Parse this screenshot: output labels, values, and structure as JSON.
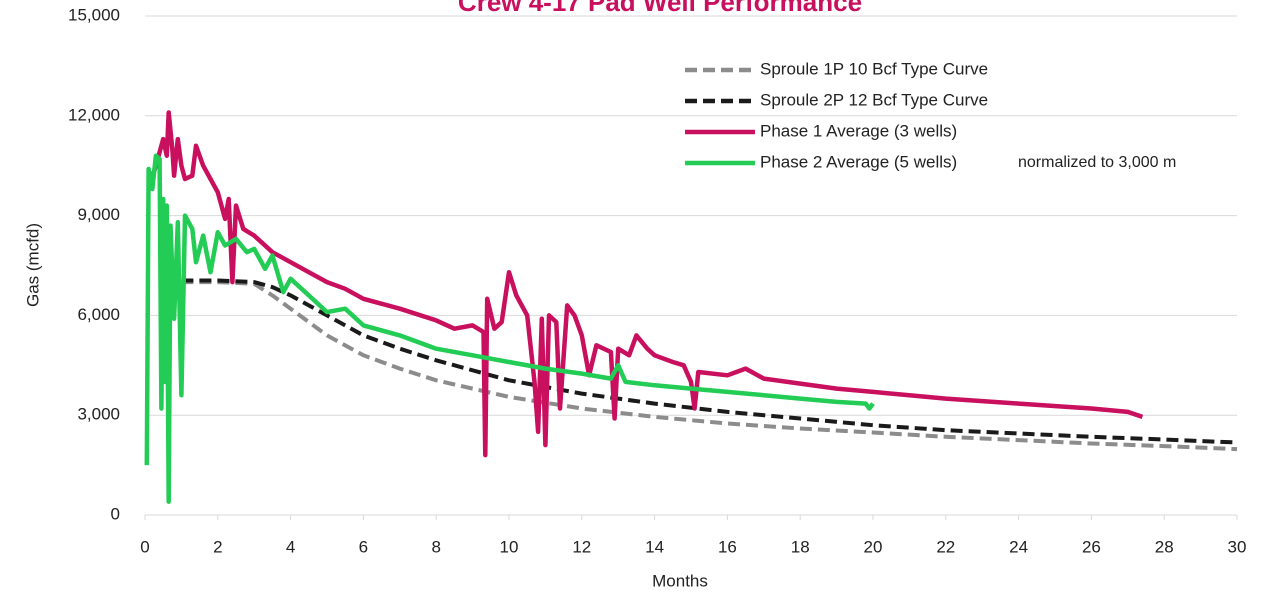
{
  "chart_data": {
    "type": "line",
    "title": "Crew 4-17 Pad Well Performance",
    "x_label": "Months",
    "y_label": "Gas (mcfd)",
    "annotation": "normalized to 3,000 m",
    "xlim": [
      0,
      30
    ],
    "xticks": [
      0,
      2,
      4,
      6,
      8,
      10,
      12,
      14,
      16,
      18,
      20,
      22,
      24,
      26,
      28,
      30
    ],
    "ylim": [
      0,
      15000
    ],
    "yticks": [
      0,
      {
        "value": 3000,
        "label": "3,000"
      },
      {
        "value": 6000,
        "label": "6,000"
      },
      {
        "value": 9000,
        "label": "9,000"
      },
      {
        "value": 12000,
        "label": "12,000"
      },
      {
        "value": 15000,
        "label": "15,000"
      }
    ],
    "grid": true,
    "legend": "upper right",
    "series": [
      {
        "name": "Sproule 1P 10 Bcf Type Curve",
        "color": "#8c8c8c",
        "dashed": true,
        "x": [
          1,
          2,
          3,
          3.5,
          4,
          5,
          6,
          7,
          8,
          10,
          12,
          14,
          16,
          18,
          20,
          22,
          24,
          26,
          28,
          30
        ],
        "values": [
          7000,
          7000,
          6950,
          6600,
          6200,
          5400,
          4800,
          4400,
          4050,
          3550,
          3200,
          2950,
          2750,
          2600,
          2480,
          2350,
          2250,
          2150,
          2070,
          1980
        ]
      },
      {
        "name": "Sproule 2P 12 Bcf Type Curve",
        "color": "#1a1a1a",
        "dashed": true,
        "x": [
          1,
          2,
          3,
          3.5,
          4,
          5,
          6,
          7,
          8,
          10,
          12,
          14,
          16,
          18,
          20,
          22,
          24,
          26,
          28,
          30
        ],
        "values": [
          7050,
          7050,
          7000,
          6850,
          6600,
          6000,
          5400,
          5000,
          4650,
          4050,
          3650,
          3350,
          3100,
          2900,
          2700,
          2550,
          2450,
          2350,
          2270,
          2180
        ]
      },
      {
        "name": "Phase 1 Average (3 wells)",
        "color": "#c8105e",
        "dashed": false,
        "x": [
          0.1,
          0.3,
          0.5,
          0.6,
          0.65,
          0.75,
          0.8,
          0.9,
          1.0,
          1.1,
          1.3,
          1.4,
          1.6,
          1.8,
          2,
          2.2,
          2.3,
          2.4,
          2.5,
          2.7,
          3,
          3.5,
          4,
          4.5,
          5,
          5.5,
          6,
          7,
          8,
          8.5,
          9,
          9.3,
          9.35,
          9.4,
          9.6,
          9.8,
          10,
          10.2,
          10.5,
          10.7,
          10.8,
          10.9,
          11,
          11.1,
          11.3,
          11.4,
          11.6,
          11.8,
          12,
          12.2,
          12.4,
          12.8,
          12.9,
          13,
          13.3,
          13.5,
          13.8,
          14,
          14.5,
          14.8,
          15,
          15.1,
          15.2,
          16,
          16.5,
          17,
          18,
          19,
          20,
          22,
          24,
          26,
          27,
          27.4
        ],
        "values": [
          9800,
          10500,
          11300,
          10800,
          12100,
          11000,
          10200,
          11300,
          10500,
          10100,
          10200,
          11100,
          10500,
          10100,
          9700,
          8900,
          9500,
          7000,
          9300,
          8600,
          8400,
          7900,
          7600,
          7300,
          7000,
          6800,
          6500,
          6200,
          5850,
          5600,
          5700,
          5500,
          1800,
          6500,
          5600,
          5800,
          7300,
          6600,
          6000,
          4000,
          2500,
          5900,
          2100,
          6000,
          5800,
          3200,
          6300,
          6000,
          5400,
          4200,
          5100,
          4900,
          2900,
          5000,
          4800,
          5400,
          5000,
          4800,
          4600,
          4500,
          4000,
          3200,
          4300,
          4200,
          4400,
          4100,
          3950,
          3800,
          3700,
          3500,
          3350,
          3200,
          3100,
          2950
        ]
      },
      {
        "name": "Phase 2 Average (5 wells)",
        "color": "#22cc55",
        "dashed": false,
        "x": [
          0.05,
          0.1,
          0.2,
          0.3,
          0.4,
          0.45,
          0.5,
          0.55,
          0.6,
          0.65,
          0.7,
          0.8,
          0.9,
          1.0,
          1.1,
          1.3,
          1.4,
          1.6,
          1.8,
          2,
          2.2,
          2.5,
          2.8,
          3,
          3.3,
          3.5,
          3.8,
          4,
          4.5,
          5,
          5.5,
          6,
          7,
          8,
          9,
          10,
          11,
          12,
          12.8,
          13,
          13.2,
          14,
          15,
          16,
          17,
          18,
          19,
          19.8,
          19.9,
          20
        ],
        "values": [
          1500,
          10400,
          9800,
          10800,
          10700,
          3200,
          9500,
          4000,
          9300,
          400,
          8700,
          5900,
          8800,
          3600,
          9000,
          8600,
          7600,
          8400,
          7300,
          8500,
          8100,
          8300,
          7900,
          8000,
          7400,
          7800,
          6700,
          7100,
          6600,
          6100,
          6200,
          5700,
          5400,
          5000,
          4800,
          4600,
          4400,
          4250,
          4100,
          4500,
          4000,
          3900,
          3800,
          3700,
          3600,
          3500,
          3400,
          3350,
          3200,
          3350
        ]
      }
    ]
  }
}
